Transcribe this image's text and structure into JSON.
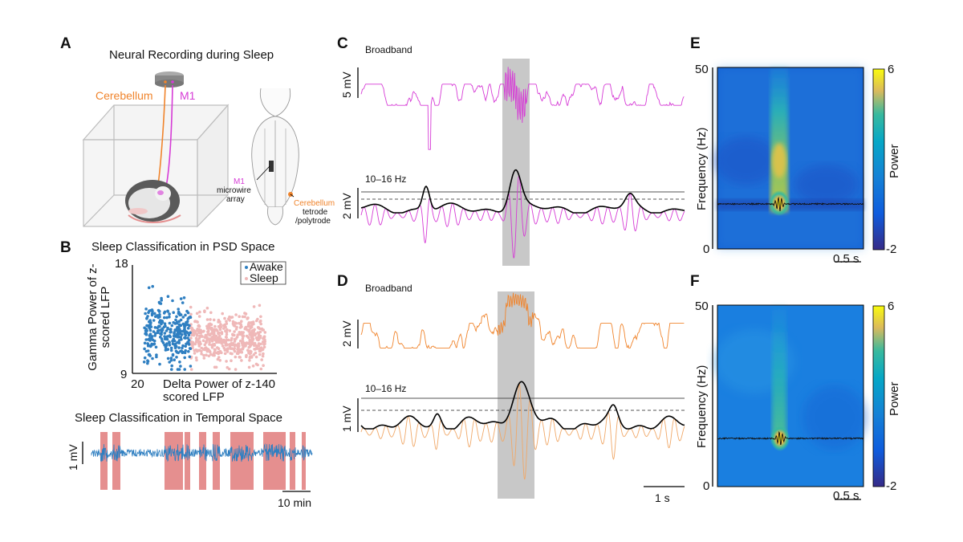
{
  "panels": {
    "A": {
      "letter": "A",
      "title": "Neural Recording during Sleep",
      "label_cerebellum": "Cerebellum",
      "label_m1": "M1",
      "brain_m1": "M1",
      "brain_microwire": "microwire",
      "brain_array": "array",
      "brain_cerebellum": "Cerebellum",
      "brain_tetrode": "tetrode",
      "brain_polytrode": "/polytrode"
    },
    "B": {
      "letter": "B",
      "scatter_title": "Sleep Classification in PSD Space",
      "temporal_title": "Sleep Classification in Temporal Space",
      "scale_mv": "1 mV",
      "scale_min": "10 min"
    },
    "C": {
      "letter": "C",
      "broadband": "Broadband",
      "scale_top": "5 mV",
      "band": "10–16 Hz",
      "scale_bottom": "2 mV"
    },
    "D": {
      "letter": "D",
      "broadband": "Broadband",
      "scale_top": "2 mV",
      "band": "10–16 Hz",
      "scale_bottom": "1 mV",
      "scale_time": "1 s"
    },
    "E": {
      "letter": "E",
      "ylabel": "Frequency (Hz)",
      "y_max": "50",
      "y_min": "0",
      "scale_time": "0.5 s",
      "cb_max": "6",
      "cb_min": "-2",
      "cb_label": "Power"
    },
    "F": {
      "letter": "F",
      "ylabel": "Frequency (Hz)",
      "y_max": "50",
      "y_min": "0",
      "scale_time": "0.5 s",
      "cb_max": "6",
      "cb_min": "-2",
      "cb_label": "Power"
    }
  },
  "colors": {
    "m1": "#d63bd6",
    "cerebellum": "#f0842c",
    "awake": "#2f7fc1",
    "sleep": "#efb8b8",
    "sleep_band": "#e58f8f",
    "highlight": "#c8c8c8"
  },
  "chart_data": [
    {
      "type": "scatter",
      "title": "Sleep Classification in PSD Space",
      "xlabel": "Delta Power of z-scored LFP",
      "ylabel": "Gamma Power of z-scored LFP",
      "xlim": [
        20,
        140
      ],
      "ylim": [
        9,
        18
      ],
      "x_ticks": [
        "20",
        "140"
      ],
      "y_ticks": [
        "9",
        "18"
      ],
      "legend": "top-right",
      "series": [
        {
          "name": "Awake",
          "x_range": [
            28,
            68
          ],
          "y_center": 12.2,
          "y_spread": 1.3,
          "count": 300
        },
        {
          "name": "Sleep",
          "x_range": [
            68,
            132
          ],
          "y_center": 11.8,
          "y_spread": 1.0,
          "count": 500
        }
      ]
    },
    {
      "type": "heatmap",
      "panel": "E",
      "ylabel": "Frequency (Hz)",
      "ylim": [
        0,
        50
      ],
      "colorbar_label": "Power",
      "colorbar_range": [
        -2,
        6
      ]
    },
    {
      "type": "heatmap",
      "panel": "F",
      "ylabel": "Frequency (Hz)",
      "ylim": [
        0,
        50
      ],
      "colorbar_label": "Power",
      "colorbar_range": [
        -2,
        6
      ]
    }
  ]
}
